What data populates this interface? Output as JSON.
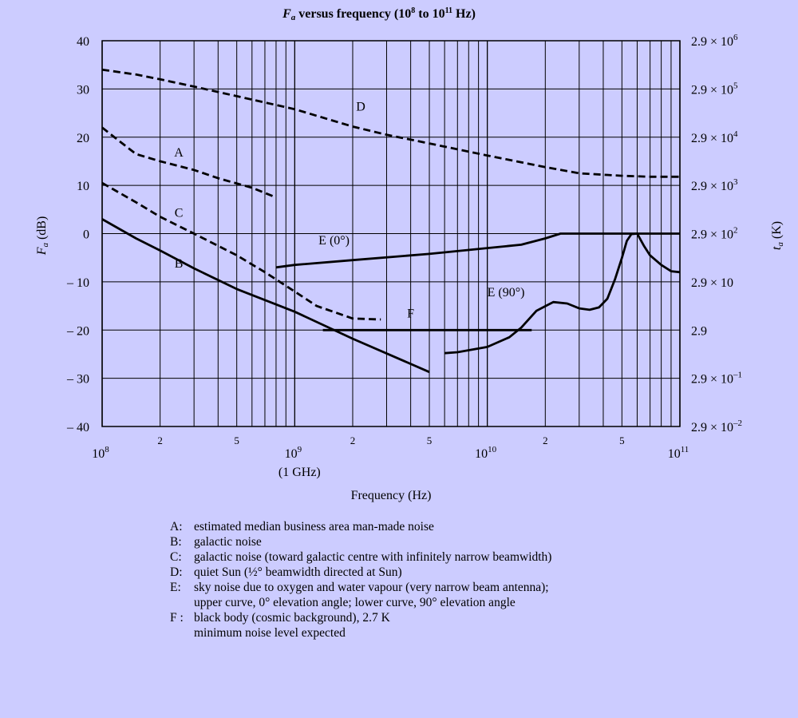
{
  "chart_data": {
    "type": "line",
    "title": "Fa versus frequency (10⁸ to 10¹¹ Hz)",
    "title_parts": {
      "sym": "F",
      "sub": "a",
      "rest": " versus frequency (10",
      "e1": "8",
      "mid": " to 10",
      "e2": "11",
      "end": " Hz)"
    },
    "xlabel": "Frequency (Hz)",
    "ylabel_left": {
      "sym": "F",
      "sub": "a",
      "unit": " (dB)"
    },
    "ylabel_right": {
      "sym": "t",
      "sub": "a",
      "unit": " (K)"
    },
    "x_scale": "log",
    "xlim": [
      100000000.0,
      100000000000.0
    ],
    "ylim": [
      -40,
      40
    ],
    "grid": true,
    "x_ticks_major": [
      {
        "value": 100000000.0,
        "base": "10",
        "exp": "8"
      },
      {
        "value": 1000000000.0,
        "base": "10",
        "exp": "9"
      },
      {
        "value": 10000000000.0,
        "base": "10",
        "exp": "10"
      },
      {
        "value": 100000000000.0,
        "base": "10",
        "exp": "11"
      }
    ],
    "x_ticks_minor": [
      {
        "value": 200000000.0,
        "label": "2"
      },
      {
        "value": 500000000.0,
        "label": "5"
      },
      {
        "value": 2000000000.0,
        "label": "2"
      },
      {
        "value": 5000000000.0,
        "label": "5"
      },
      {
        "value": 20000000000.0,
        "label": "2"
      },
      {
        "value": 50000000000.0,
        "label": "5"
      }
    ],
    "x_extra_label": {
      "value": 1000000000.0,
      "text": "(1 GHz)"
    },
    "y_ticks_left": [
      {
        "value": 40,
        "label": "40"
      },
      {
        "value": 30,
        "label": "30"
      },
      {
        "value": 20,
        "label": "20"
      },
      {
        "value": 10,
        "label": "10"
      },
      {
        "value": 0,
        "label": "0"
      },
      {
        "value": -10,
        "label": "– 10"
      },
      {
        "value": -20,
        "label": "– 20"
      },
      {
        "value": -30,
        "label": "– 30"
      },
      {
        "value": -40,
        "label": "– 40"
      }
    ],
    "y_ticks_right": [
      {
        "value": 40,
        "mant": "2.9 × 10",
        "exp": "6"
      },
      {
        "value": 30,
        "mant": "2.9 × 10",
        "exp": "5"
      },
      {
        "value": 20,
        "mant": "2.9 × 10",
        "exp": "4"
      },
      {
        "value": 10,
        "mant": "2.9 × 10",
        "exp": "3"
      },
      {
        "value": 0,
        "mant": "2.9 × 10",
        "exp": "2"
      },
      {
        "value": -10,
        "mant": "2.9 × 10",
        "exp": ""
      },
      {
        "value": -20,
        "mant": "2.9",
        "exp": ""
      },
      {
        "value": -30,
        "mant": "2.9 × 10",
        "exp": "–1"
      },
      {
        "value": -40,
        "mant": "2.9 × 10",
        "exp": "–2"
      }
    ],
    "series": [
      {
        "name": "A",
        "style": "dashed",
        "label_at": [
          250000000.0,
          16
        ],
        "points": [
          [
            100000000.0,
            22
          ],
          [
            120000000.0,
            19.5
          ],
          [
            150000000.0,
            16.5
          ],
          [
            200000000.0,
            15
          ],
          [
            300000000.0,
            13.2
          ],
          [
            400000000.0,
            11.5
          ],
          [
            600000000.0,
            9.5
          ],
          [
            800000000.0,
            7.5
          ]
        ]
      },
      {
        "name": "B",
        "style": "solid",
        "label_at": [
          250000000.0,
          -7
        ],
        "points": [
          [
            100000000.0,
            3
          ],
          [
            150000000.0,
            -1
          ],
          [
            200000000.0,
            -3.5
          ],
          [
            300000000.0,
            -7.2
          ],
          [
            500000000.0,
            -11.5
          ],
          [
            1000000000.0,
            -16.2
          ],
          [
            2000000000.0,
            -21.8
          ],
          [
            5000000000.0,
            -28.7
          ]
        ]
      },
      {
        "name": "C",
        "style": "dashed",
        "label_at": [
          250000000.0,
          3.5
        ],
        "points": [
          [
            100000000.0,
            10.5
          ],
          [
            150000000.0,
            6.5
          ],
          [
            200000000.0,
            3.5
          ],
          [
            300000000.0,
            0
          ],
          [
            500000000.0,
            -4.5
          ],
          [
            700000000.0,
            -8
          ],
          [
            1000000000.0,
            -12
          ],
          [
            1300000000.0,
            -15
          ],
          [
            2000000000.0,
            -17.6
          ],
          [
            2800000000.0,
            -17.8
          ]
        ]
      },
      {
        "name": "D",
        "style": "dashed",
        "label_at": [
          2200000000.0,
          25.5
        ],
        "points": [
          [
            100000000.0,
            34
          ],
          [
            150000000.0,
            33
          ],
          [
            200000000.0,
            32
          ],
          [
            300000000.0,
            30.5
          ],
          [
            500000000.0,
            28.5
          ],
          [
            1000000000.0,
            25.8
          ],
          [
            2000000000.0,
            22.2
          ],
          [
            3000000000.0,
            20.5
          ],
          [
            5000000000.0,
            18.7
          ],
          [
            10000000000.0,
            16.2
          ],
          [
            20000000000.0,
            13.8
          ],
          [
            30000000000.0,
            12.5
          ],
          [
            50000000000.0,
            12
          ],
          [
            70000000000.0,
            11.8
          ],
          [
            100000000000.0,
            11.8
          ]
        ]
      },
      {
        "name": "E (0°)",
        "style": "solid",
        "label_at": [
          1600000000.0,
          -2.2
        ],
        "points": [
          [
            800000000.0,
            -7
          ],
          [
            1000000000.0,
            -6.5
          ],
          [
            2000000000.0,
            -5.5
          ],
          [
            5000000000.0,
            -4.2
          ],
          [
            10000000000.0,
            -3
          ],
          [
            15000000000.0,
            -2.3
          ],
          [
            20000000000.0,
            -1
          ],
          [
            24000000000.0,
            0
          ],
          [
            30000000000.0,
            0
          ],
          [
            50000000000.0,
            0
          ],
          [
            100000000000.0,
            0
          ]
        ]
      },
      {
        "name": "E (90°)",
        "style": "solid",
        "label_at": [
          12500000000.0,
          -13
        ],
        "points": [
          [
            6000000000.0,
            -24.8
          ],
          [
            7000000000.0,
            -24.6
          ],
          [
            10000000000.0,
            -23.5
          ],
          [
            13000000000.0,
            -21.5
          ],
          [
            15000000000.0,
            -19.5
          ],
          [
            18000000000.0,
            -16
          ],
          [
            22000000000.0,
            -14.2
          ],
          [
            26000000000.0,
            -14.5
          ],
          [
            30000000000.0,
            -15.5
          ],
          [
            34000000000.0,
            -15.8
          ],
          [
            38000000000.0,
            -15.3
          ],
          [
            42000000000.0,
            -13.5
          ],
          [
            46000000000.0,
            -9.5
          ],
          [
            50000000000.0,
            -5
          ],
          [
            53000000000.0,
            -1.5
          ],
          [
            56000000000.0,
            -0.1
          ],
          [
            60000000000.0,
            0
          ],
          [
            65000000000.0,
            -2.5
          ],
          [
            70000000000.0,
            -4.5
          ],
          [
            80000000000.0,
            -6.5
          ],
          [
            90000000000.0,
            -7.8
          ],
          [
            100000000000.0,
            -8
          ]
        ]
      },
      {
        "name": "F",
        "style": "solid",
        "label_at": [
          4000000000.0,
          -17.4
        ],
        "points": [
          [
            1400000000.0,
            -20
          ],
          [
            17000000000.0,
            -20
          ]
        ]
      }
    ]
  },
  "legend": {
    "items": [
      {
        "key": "A:",
        "text": "estimated median business area man-made noise"
      },
      {
        "key": "B:",
        "text": "galactic noise"
      },
      {
        "key": "C:",
        "text": "galactic noise (toward galactic centre with infinitely narrow beamwidth)"
      },
      {
        "key": "D:",
        "text": "quiet Sun (½° beamwidth directed at Sun)"
      },
      {
        "key": "E:",
        "text": "sky noise due to oxygen and water vapour (very narrow beam antenna);",
        "cont": "upper curve, 0° elevation angle; lower curve, 90° elevation angle"
      },
      {
        "key": "F :",
        "text": "black body (cosmic background), 2.7 K",
        "cont": "minimum noise level expected"
      }
    ]
  }
}
